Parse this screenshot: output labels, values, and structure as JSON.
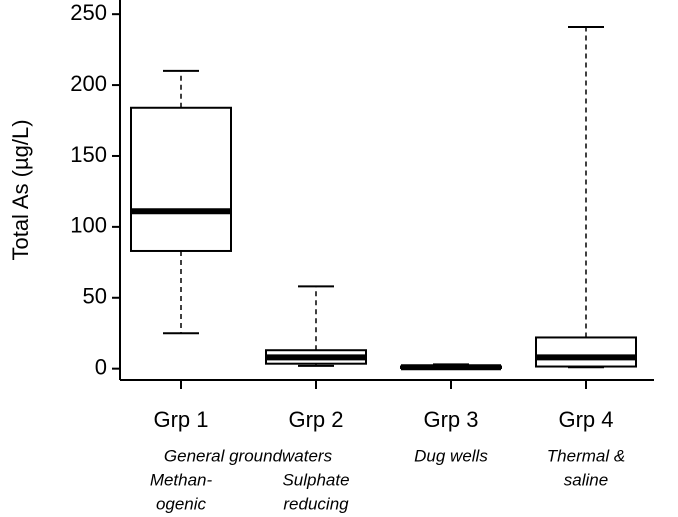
{
  "chart_data": {
    "type": "box",
    "y_label": "Total As (µg/L)",
    "categories": [
      "Grp 1",
      "Grp 2",
      "Grp 3",
      "Grp 4"
    ],
    "boxes": [
      {
        "whisker_low": 25,
        "q1": 83,
        "median": 111,
        "q3": 184,
        "whisker_high": 210
      },
      {
        "whisker_low": 2,
        "q1": 3.5,
        "median": 8,
        "q3": 13,
        "whisker_high": 58
      },
      {
        "whisker_low": 0,
        "q1": 0.5,
        "median": 1,
        "q3": 1.5,
        "whisker_high": 3
      },
      {
        "whisker_low": 1,
        "q1": 1.5,
        "median": 8,
        "q3": 22,
        "whisker_high": 241
      }
    ],
    "color": "#000000",
    "ylim": [
      -8,
      260
    ],
    "yticks": [
      0,
      50,
      100,
      150,
      200,
      250
    ],
    "annotations": [
      "General groundwaters",
      "Methan-",
      "ogenic",
      "Sulphate",
      "reducing",
      "Dug wells",
      "Thermal &",
      "saline"
    ]
  }
}
